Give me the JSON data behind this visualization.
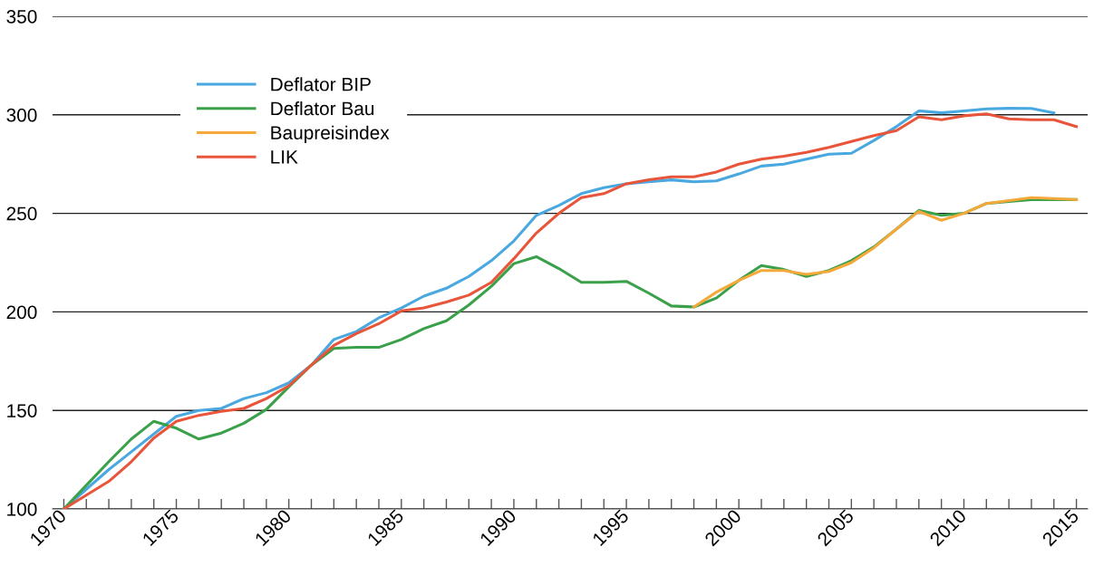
{
  "chart_data": {
    "type": "line",
    "x": [
      1970,
      1971,
      1972,
      1973,
      1974,
      1975,
      1976,
      1977,
      1978,
      1979,
      1980,
      1981,
      1982,
      1983,
      1984,
      1985,
      1986,
      1987,
      1988,
      1989,
      1990,
      1991,
      1992,
      1993,
      1994,
      1995,
      1996,
      1997,
      1998,
      1999,
      2000,
      2001,
      2002,
      2003,
      2004,
      2005,
      2006,
      2007,
      2008,
      2009,
      2010,
      2011,
      2012,
      2013,
      2014,
      2015
    ],
    "series": [
      {
        "name": "Deflator BIP",
        "color": "#4aa8e0",
        "values": [
          100,
          110,
          120,
          129,
          138,
          147,
          150,
          151,
          156,
          159,
          164,
          173,
          186,
          190,
          197,
          202,
          208,
          212,
          218,
          226,
          236,
          249,
          254,
          260,
          263,
          265,
          266,
          267,
          266,
          266.5,
          270,
          274,
          275,
          277.5,
          280,
          280.5,
          287,
          294,
          302,
          301,
          302,
          303,
          303.3,
          303.2,
          301,
          null
        ]
      },
      {
        "name": "Deflator Bau",
        "color": "#3aa04a",
        "values": [
          100,
          112,
          124,
          135.5,
          144.5,
          141,
          135.5,
          138.5,
          143.5,
          150.5,
          162,
          173,
          181.5,
          182,
          182,
          186,
          191.5,
          195.5,
          203.5,
          213,
          224.5,
          228,
          222,
          215,
          215,
          215.5,
          209.5,
          203,
          202.5,
          207,
          216,
          223.5,
          221.5,
          218,
          221,
          226,
          233,
          242,
          251.5,
          249,
          250,
          255,
          256,
          257,
          257,
          257
        ]
      },
      {
        "name": "Baupreisindex",
        "color": "#f5a93a",
        "values": [
          null,
          null,
          null,
          null,
          null,
          null,
          null,
          null,
          null,
          null,
          null,
          null,
          null,
          null,
          null,
          null,
          null,
          null,
          null,
          null,
          null,
          null,
          null,
          null,
          null,
          null,
          null,
          null,
          202.5,
          210,
          216,
          221,
          221,
          219,
          220.5,
          225,
          232.5,
          242,
          251,
          246.5,
          250,
          255,
          256.5,
          258,
          257.5,
          257
        ]
      },
      {
        "name": "LIK",
        "color": "#e8553a",
        "values": [
          100,
          107,
          114,
          124,
          136,
          144.5,
          147.5,
          149.5,
          151,
          156,
          162.5,
          173,
          183,
          189,
          194,
          200.5,
          202,
          205,
          208.5,
          215,
          227,
          240,
          250,
          258,
          260,
          265,
          267,
          268.5,
          268.5,
          271,
          275,
          277.5,
          279,
          281,
          283.5,
          286.5,
          289.5,
          292,
          299,
          297.5,
          299.5,
          300.5,
          298,
          297.5,
          297.5,
          294
        ]
      }
    ],
    "xlim": [
      1969.5,
      2015.5
    ],
    "xticks": [
      1970,
      {
        "value": 1971,
        "label": null
      },
      {
        "value": 1972,
        "label": null
      },
      {
        "value": 1973,
        "label": null
      },
      {
        "value": 1974,
        "label": null
      },
      1975,
      {
        "value": 1976,
        "label": null
      },
      {
        "value": 1977,
        "label": null
      },
      {
        "value": 1978,
        "label": null
      },
      {
        "value": 1979,
        "label": null
      },
      1980,
      {
        "value": 1981,
        "label": null
      },
      {
        "value": 1982,
        "label": null
      },
      {
        "value": 1983,
        "label": null
      },
      {
        "value": 1984,
        "label": null
      },
      1985,
      {
        "value": 1986,
        "label": null
      },
      {
        "value": 1987,
        "label": null
      },
      {
        "value": 1988,
        "label": null
      },
      {
        "value": 1989,
        "label": null
      },
      1990,
      {
        "value": 1991,
        "label": null
      },
      {
        "value": 1992,
        "label": null
      },
      {
        "value": 1993,
        "label": null
      },
      {
        "value": 1994,
        "label": null
      },
      1995,
      {
        "value": 1996,
        "label": null
      },
      {
        "value": 1997,
        "label": null
      },
      {
        "value": 1998,
        "label": null
      },
      {
        "value": 1999,
        "label": null
      },
      2000,
      {
        "value": 2001,
        "label": null
      },
      {
        "value": 2002,
        "label": null
      },
      {
        "value": 2003,
        "label": null
      },
      {
        "value": 2004,
        "label": null
      },
      2005,
      {
        "value": 2006,
        "label": null
      },
      {
        "value": 2007,
        "label": null
      },
      {
        "value": 2008,
        "label": null
      },
      {
        "value": 2009,
        "label": null
      },
      2010,
      {
        "value": 2011,
        "label": null
      },
      {
        "value": 2012,
        "label": null
      },
      {
        "value": 2013,
        "label": null
      },
      {
        "value": 2014,
        "label": null
      },
      2015
    ],
    "ylim": [
      100,
      350
    ],
    "yticks": [
      100,
      150,
      200,
      250,
      300,
      350
    ],
    "grid": "y",
    "legend": "top left",
    "marker": "none",
    "line_style": "solid"
  }
}
